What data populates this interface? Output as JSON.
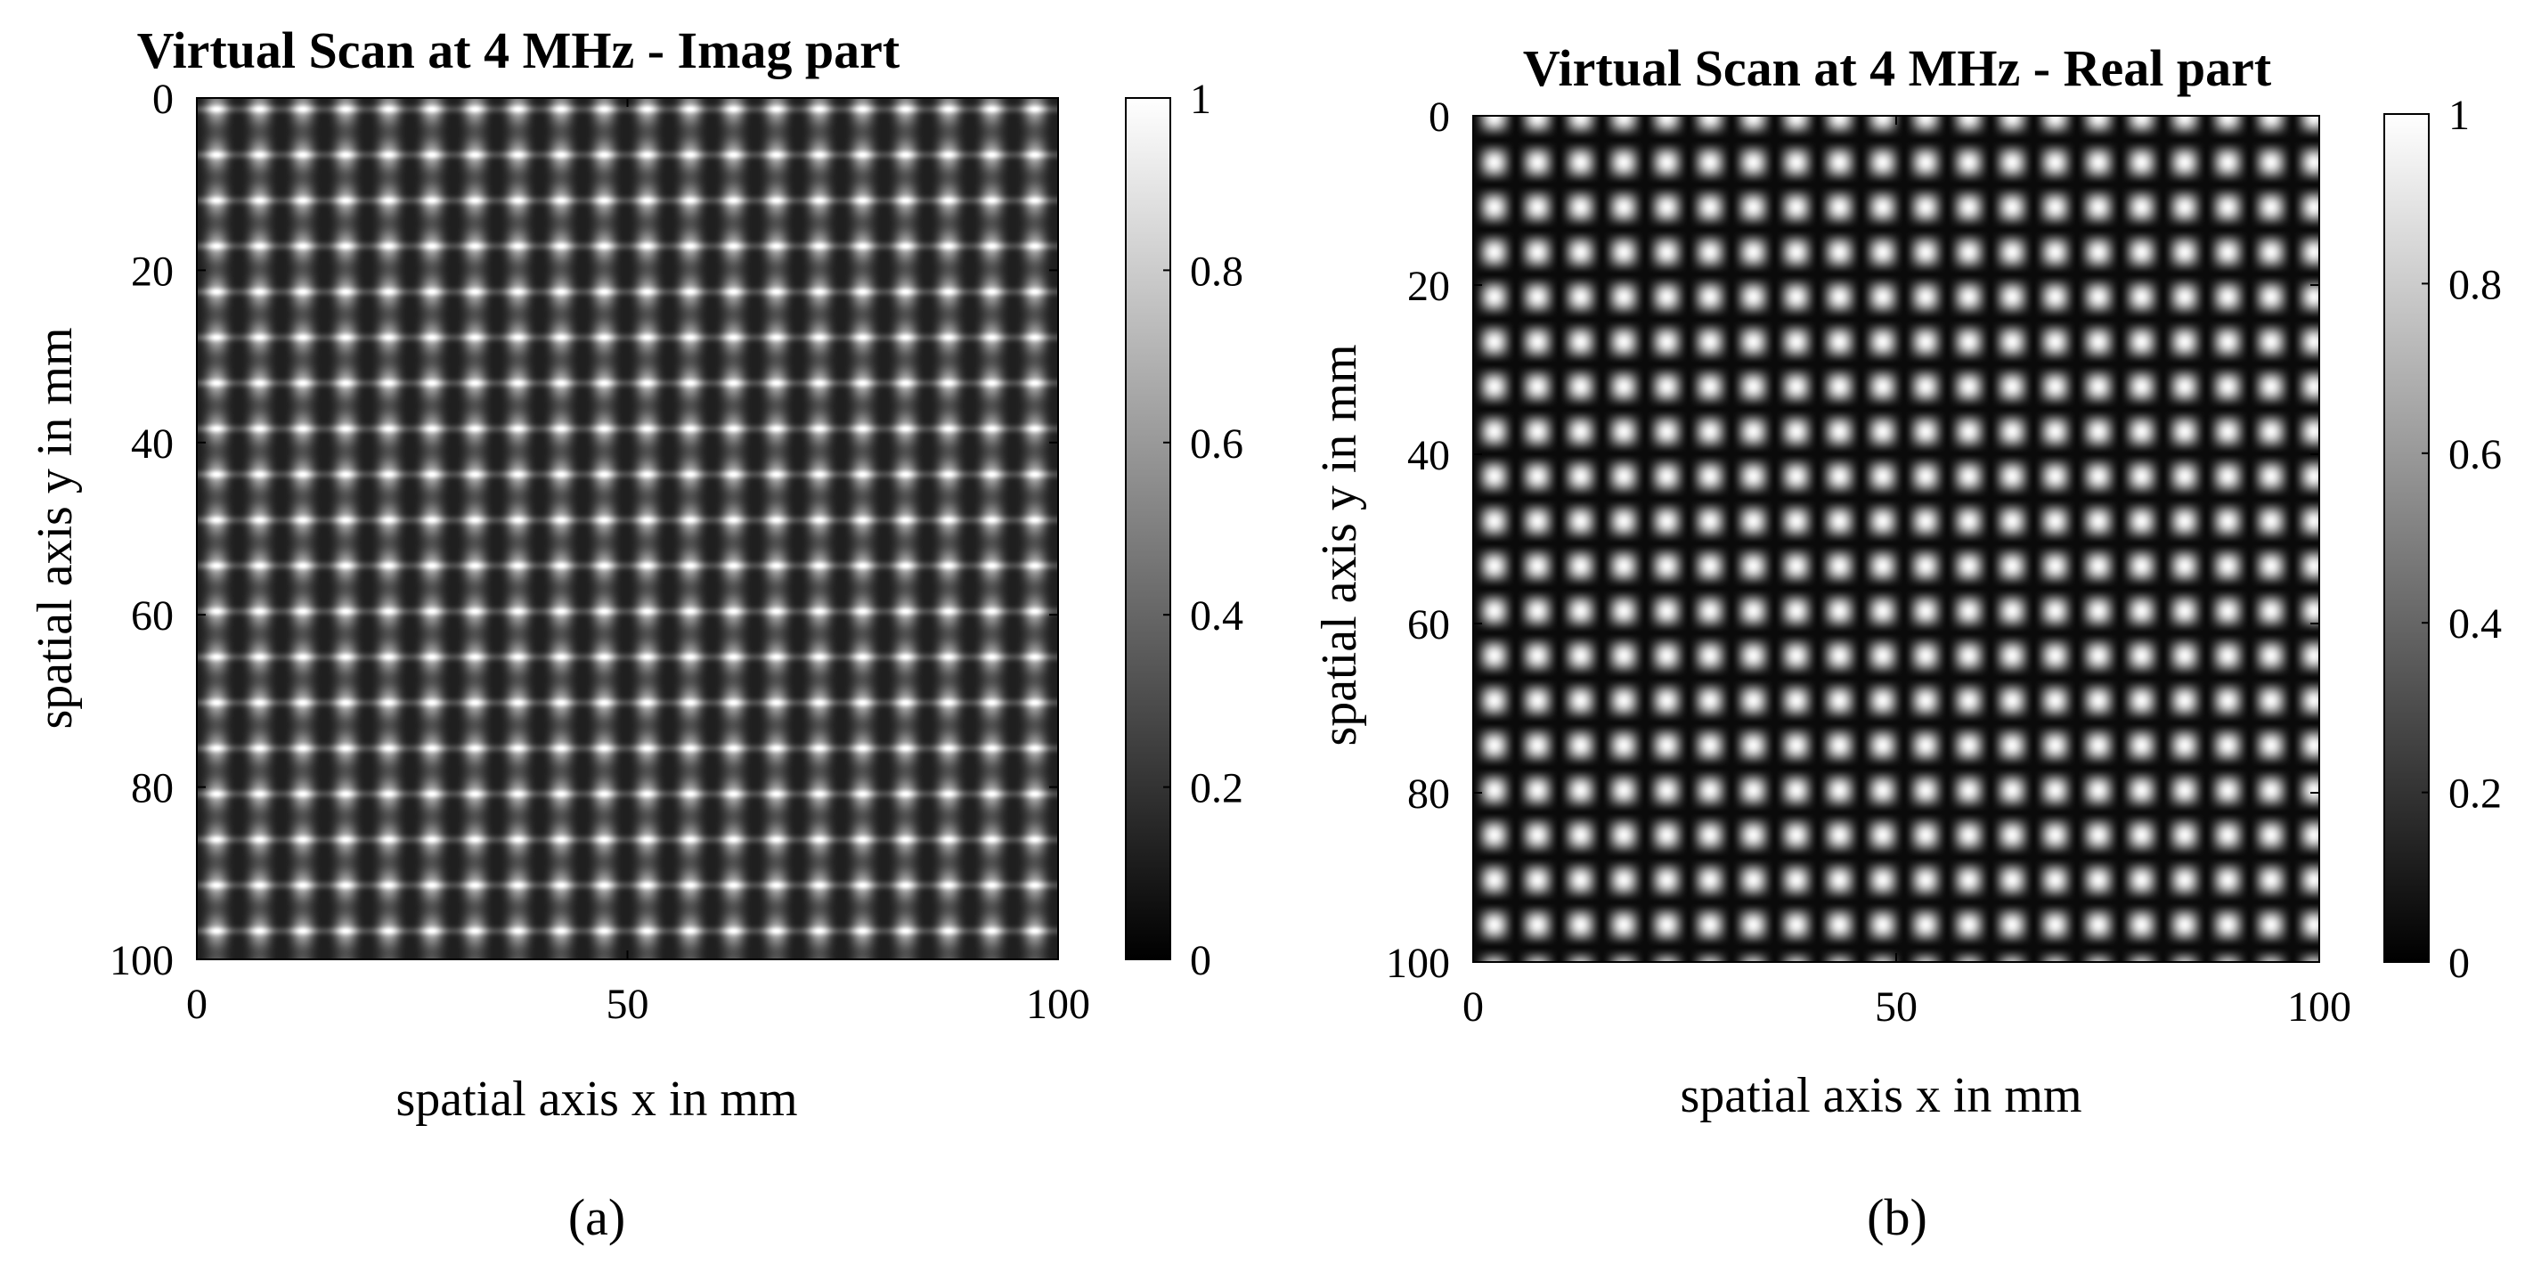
{
  "chart_data": [
    {
      "type": "heatmap",
      "panel_label": "(a)",
      "title": "Virtual Scan at 4 MHz - Imag part",
      "xlabel": "spatial axis x in mm",
      "ylabel": "spatial axis y in mm",
      "xlim": [
        0,
        100
      ],
      "ylim": [
        0,
        100
      ],
      "y_reversed": true,
      "xticks": [
        0,
        50,
        100
      ],
      "yticks": [
        0,
        20,
        40,
        60,
        80,
        100
      ],
      "colormap": "gray",
      "color_range": [
        0,
        1
      ],
      "colorbar_ticks": [
        0,
        0.2,
        0.4,
        0.6,
        0.8,
        1
      ],
      "colorbar_tick_labels": [
        "0",
        "0.2",
        "0.4",
        "0.6",
        "0.8",
        "1"
      ],
      "pattern": {
        "description_values": "periodic grid of bright and dark cells",
        "period_x_mm": 5,
        "period_y_mm": 5.3,
        "phase_x_mm": 2.3,
        "phase_y_mm": 1.3
      }
    },
    {
      "type": "heatmap",
      "panel_label": "(b)",
      "title": "Virtual Scan at 4 MHz - Real part",
      "xlabel": "spatial axis x in mm",
      "ylabel": "spatial axis y in mm",
      "xlim": [
        0,
        100
      ],
      "ylim": [
        0,
        100
      ],
      "y_reversed": true,
      "xticks": [
        0,
        50,
        100
      ],
      "yticks": [
        0,
        20,
        40,
        60,
        80,
        100
      ],
      "colormap": "gray",
      "color_range": [
        0,
        1
      ],
      "colorbar_ticks": [
        0,
        0.2,
        0.4,
        0.6,
        0.8,
        1
      ],
      "colorbar_tick_labels": [
        "0",
        "0.2",
        "0.4",
        "0.6",
        "0.8",
        "1"
      ],
      "pattern": {
        "description_values": "periodic grid of bright spots",
        "period_x_mm": 5.1,
        "period_y_mm": 5.3,
        "phase_x_mm": 2.5,
        "phase_y_mm": 0.2
      }
    }
  ]
}
